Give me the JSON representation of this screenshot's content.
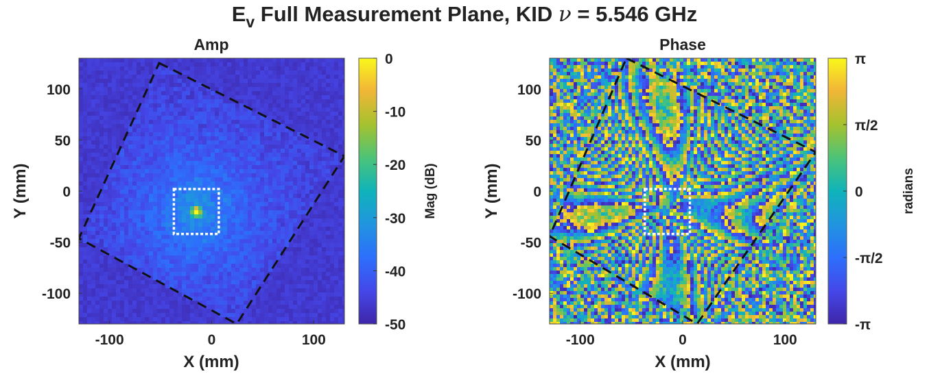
{
  "figure": {
    "title_main": "E",
    "title_sub": "v",
    "title_rest_1": " Full Measurement Plane, KID ",
    "title_nu": "ν",
    "title_rest_2": " = 5.546 GHz"
  },
  "chart_data": [
    {
      "type": "heatmap",
      "title": "Amp",
      "xlabel": "X (mm)",
      "ylabel": "Y (mm)",
      "xlim": [
        -130,
        130
      ],
      "ylim": [
        -130,
        130
      ],
      "x_ticks": [
        -100,
        0,
        100
      ],
      "x_tick_labels": [
        "-100",
        "0",
        "100"
      ],
      "y_ticks": [
        100,
        50,
        0,
        -50,
        -100
      ],
      "y_tick_labels": [
        "100",
        "50",
        "0",
        "-50",
        "-100"
      ],
      "colorbar": {
        "label": "Mag (dB)",
        "range": [
          -50,
          0
        ],
        "ticks": [
          0,
          -10,
          -20,
          -30,
          -40,
          -50
        ],
        "tick_labels": [
          "0",
          "-10",
          "-20",
          "-30",
          "-40",
          "-50"
        ],
        "colormap": "parula"
      },
      "beam_center": [
        -15,
        -20
      ],
      "aperture_square": {
        "center": [
          -15,
          -20
        ],
        "half_width": 22
      },
      "scan_boundary_dashed": {
        "shape": "rotated-square",
        "color": "#111111"
      }
    },
    {
      "type": "heatmap",
      "title": "Phase",
      "xlabel": "X (mm)",
      "ylabel": "Y (mm)",
      "xlim": [
        -130,
        130
      ],
      "ylim": [
        -130,
        130
      ],
      "x_ticks": [
        -100,
        0,
        100
      ],
      "x_tick_labels": [
        "-100",
        "0",
        "100"
      ],
      "y_ticks": [
        100,
        50,
        0,
        -50,
        -100
      ],
      "y_tick_labels": [
        "100",
        "50",
        "0",
        "-50",
        "-100"
      ],
      "colorbar": {
        "label": "radians",
        "range": [
          -3.1416,
          3.1416
        ],
        "ticks": [
          3.1416,
          1.5708,
          0,
          -1.5708,
          -3.1416
        ],
        "tick_labels": [
          "π",
          "π/2",
          "0",
          "-π/2",
          "-π"
        ],
        "colormap": "parula"
      },
      "beam_center": [
        -15,
        -20
      ],
      "aperture_square": {
        "center": [
          -15,
          -20
        ],
        "half_width": 22
      },
      "scan_boundary_dashed": {
        "shape": "rotated-square",
        "color": "#111111"
      }
    }
  ]
}
